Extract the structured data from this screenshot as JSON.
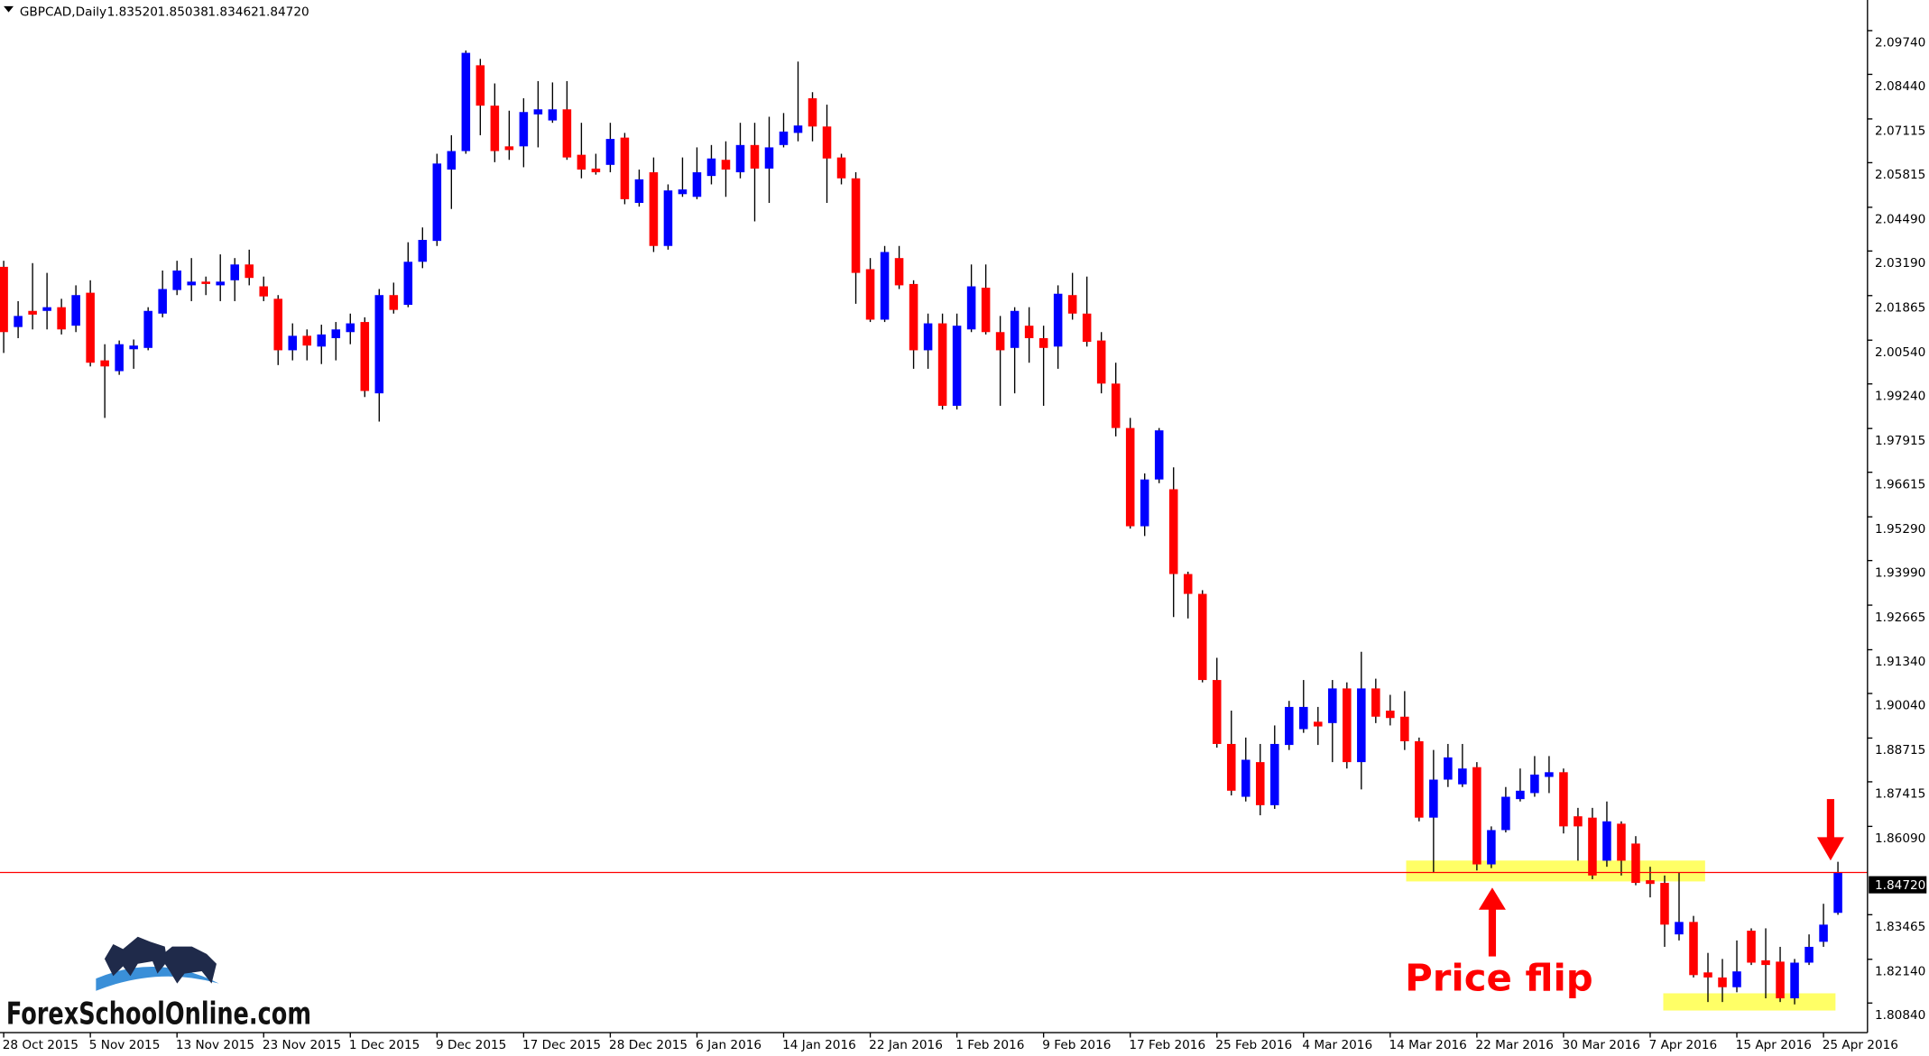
{
  "chart_data": {
    "type": "candlestick",
    "title": "GBPCAD,Daily",
    "header_labels": [
      "1.83520",
      "1.85038",
      "1.83462",
      "1.84720"
    ],
    "annotation": "Price flip",
    "logo": "ForexSchoolOnline.com",
    "up_color": "#0000ff",
    "down_color": "#ff0000",
    "wick_color": "#000000",
    "categories": [
      "28 Oct 2015",
      null,
      null,
      null,
      null,
      null,
      "5 Nov 2015",
      null,
      null,
      null,
      null,
      null,
      "13 Nov 2015",
      null,
      null,
      null,
      null,
      null,
      "23 Nov 2015",
      null,
      null,
      null,
      null,
      null,
      "1 Dec 2015",
      null,
      null,
      null,
      null,
      null,
      "9 Dec 2015",
      null,
      null,
      null,
      null,
      null,
      "17 Dec 2015",
      null,
      null,
      null,
      null,
      null,
      "28 Dec 2015",
      null,
      null,
      null,
      null,
      null,
      "6 Jan 2016",
      null,
      null,
      null,
      null,
      null,
      "14 Jan 2016",
      null,
      null,
      null,
      null,
      null,
      "22 Jan 2016",
      null,
      null,
      null,
      null,
      null,
      "1 Feb 2016",
      null,
      null,
      null,
      null,
      null,
      "9 Feb 2016",
      null,
      null,
      null,
      null,
      null,
      "17 Feb 2016",
      null,
      null,
      null,
      null,
      null,
      "25 Feb 2016",
      null,
      null,
      null,
      null,
      null,
      "4 Mar 2016",
      null,
      null,
      null,
      null,
      null,
      "14 Mar 2016",
      null,
      null,
      null,
      null,
      null,
      "22 Mar 2016",
      null,
      null,
      null,
      null,
      null,
      "30 Mar 2016",
      null,
      null,
      null,
      null,
      null,
      "7 Apr 2016",
      null,
      null,
      null,
      null,
      null,
      "15 Apr 2016",
      null,
      null,
      null,
      null,
      null,
      "25 Apr 2016",
      null
    ],
    "open": [
      2.0272,
      2.0093,
      2.0141,
      2.0141,
      2.0152,
      2.0097,
      2.0195,
      1.9994,
      1.9962,
      2.0027,
      2.0031,
      2.0133,
      2.0203,
      2.0217,
      2.0228,
      2.0217,
      2.0232,
      2.0279,
      2.0214,
      2.0177,
      2.0024,
      2.0067,
      2.0035,
      2.006,
      2.0078,
      2.0108,
      1.9896,
      2.0188,
      2.0159,
      2.0287,
      2.0349,
      2.0561,
      2.0616,
      2.0871,
      2.0751,
      2.063,
      2.063,
      2.0725,
      2.0707,
      2.074,
      2.0605,
      2.0564,
      2.0575,
      2.0656,
      2.0462,
      2.0553,
      2.0334,
      2.0488,
      2.048,
      2.0542,
      2.059,
      2.0553,
      2.0634,
      2.0564,
      2.0634,
      2.067,
      2.0773,
      2.0689,
      2.0597,
      2.0535,
      2.0265,
      2.0115,
      2.0298,
      2.0221,
      2.0024,
      2.0104,
      1.9859,
      2.0086,
      2.021,
      2.0078,
      2.0031,
      2.0097,
      2.006,
      2.0035,
      2.0188,
      2.0133,
      2.0053,
      1.9925,
      1.9793,
      1.9501,
      1.964,
      1.9611,
      1.9359,
      1.93,
      1.9044,
      1.8854,
      1.8697,
      1.88,
      1.8672,
      1.8851,
      1.8898,
      1.892,
      1.8916,
      1.9019,
      1.88,
      1.9019,
      1.8953,
      1.8935,
      1.8862,
      1.8635,
      1.8748,
      1.8734,
      1.8785,
      1.8496,
      1.8598,
      1.869,
      1.8708,
      1.8756,
      1.877,
      1.8639,
      1.8635,
      1.8507,
      1.8617,
      1.8558,
      1.8449,
      1.8441,
      1.8288,
      1.8325,
      1.8175,
      1.816,
      1.8131,
      1.8299,
      1.8211,
      1.8207,
      1.8098,
      1.8204,
      1.8266,
      1.8352
    ],
    "high": [
      2.029,
      2.017,
      2.0283,
      2.0254,
      2.0177,
      2.0217,
      2.0232,
      2.0042,
      2.0053,
      2.0056,
      2.0152,
      2.0261,
      2.029,
      2.0298,
      2.0243,
      2.0309,
      2.0298,
      2.0323,
      2.0243,
      2.0188,
      2.0104,
      2.0086,
      2.01,
      2.0108,
      2.0133,
      2.0122,
      2.0206,
      2.0225,
      2.0345,
      2.0389,
      2.0608,
      2.0663,
      2.0915,
      2.089,
      2.0817,
      2.0736,
      2.0773,
      2.0824,
      2.082,
      2.0824,
      2.07,
      2.0608,
      2.07,
      2.067,
      2.0561,
      2.0597,
      2.0517,
      2.0597,
      2.0627,
      2.0634,
      2.0645,
      2.07,
      2.07,
      2.0718,
      2.0729,
      2.0882,
      2.0791,
      2.0754,
      2.0608,
      2.0553,
      2.0298,
      2.0334,
      2.0334,
      2.0232,
      2.0133,
      2.0133,
      2.0133,
      2.0279,
      2.0279,
      2.0126,
      2.0152,
      2.0152,
      2.0097,
      2.0217,
      2.0254,
      2.0243,
      2.0078,
      1.9987,
      1.9823,
      1.9658,
      1.9793,
      1.9676,
      1.9366,
      1.9311,
      1.911,
      1.8953,
      1.8873,
      1.8854,
      1.8909,
      1.8982,
      1.9044,
      1.8964,
      1.9044,
      1.9037,
      1.9128,
      1.9048,
      1.9,
      1.9011,
      1.8873,
      1.8836,
      1.8854,
      1.8854,
      1.88,
      1.8609,
      1.8726,
      1.8781,
      1.8818,
      1.8818,
      1.8781,
      1.8664,
      1.8664,
      1.8683,
      1.8624,
      1.858,
      1.8489,
      1.8463,
      1.8471,
      1.8343,
      1.8233,
      1.8215,
      1.827,
      1.8306,
      1.8306,
      1.8251,
      1.8215,
      1.8288,
      1.8379,
      1.85038
    ],
    "low": [
      2.0016,
      2.006,
      2.0086,
      2.0086,
      2.0071,
      2.0078,
      1.9976,
      1.9823,
      1.9951,
      1.9969,
      2.0024,
      2.0122,
      2.0188,
      2.017,
      2.0188,
      2.017,
      2.017,
      2.0217,
      2.017,
      1.998,
      1.9994,
      1.9994,
      1.9983,
      1.9994,
      2.0042,
      1.9885,
      1.9812,
      2.0133,
      2.0152,
      2.0268,
      2.0334,
      2.0444,
      2.0608,
      2.0663,
      2.0583,
      2.059,
      2.0568,
      2.0627,
      2.07,
      2.059,
      2.0535,
      2.0546,
      2.0553,
      2.0458,
      2.0451,
      2.0316,
      2.0323,
      2.048,
      2.0473,
      2.0517,
      2.048,
      2.0535,
      2.0407,
      2.0462,
      2.0627,
      2.0645,
      2.0645,
      2.0462,
      2.0517,
      2.0162,
      2.0108,
      2.0108,
      2.0206,
      1.9969,
      1.9969,
      1.9848,
      1.9848,
      2.0078,
      2.0071,
      1.9859,
      1.9896,
      1.9987,
      1.9859,
      1.9969,
      2.0115,
      2.0035,
      1.9896,
      1.9768,
      1.9494,
      1.9472,
      1.9629,
      1.9231,
      1.9227,
      1.9037,
      1.8843,
      1.8701,
      1.8683,
      1.8642,
      1.8661,
      1.8836,
      1.8887,
      1.8851,
      1.88,
      1.8781,
      1.8719,
      1.8916,
      1.8909,
      1.8836,
      1.8624,
      1.8471,
      1.8726,
      1.8726,
      1.8478,
      1.8485,
      1.8591,
      1.8683,
      1.8697,
      1.8708,
      1.8588,
      1.8507,
      1.8452,
      1.8489,
      1.8463,
      1.8434,
      1.8398,
      1.8251,
      1.827,
      1.816,
      1.8087,
      1.8087,
      1.8116,
      1.8197,
      1.8098,
      1.8087,
      1.808,
      1.8197,
      1.8251,
      1.83462
    ],
    "close": [
      2.0078,
      2.0126,
      2.013,
      2.0152,
      2.0086,
      2.0188,
      1.9987,
      1.9976,
      2.0042,
      2.0038,
      2.0141,
      2.0206,
      2.0261,
      2.0228,
      2.0221,
      2.0228,
      2.0279,
      2.0239,
      2.0184,
      2.0024,
      2.0067,
      2.0038,
      2.0071,
      2.0086,
      2.0104,
      1.9903,
      2.0188,
      2.0144,
      2.0287,
      2.0352,
      2.0579,
      2.0616,
      2.0908,
      2.0751,
      2.0616,
      2.0619,
      2.0732,
      2.074,
      2.074,
      2.0597,
      2.0561,
      2.0553,
      2.0652,
      2.0473,
      2.0532,
      2.0334,
      2.0499,
      2.0502,
      2.0553,
      2.0594,
      2.0561,
      2.0634,
      2.0564,
      2.0627,
      2.0674,
      2.0692,
      2.0689,
      2.0594,
      2.0535,
      2.0254,
      2.0115,
      2.0316,
      2.0217,
      2.0024,
      2.0104,
      1.9859,
      2.0097,
      2.0214,
      2.0078,
      2.0024,
      2.0141,
      2.006,
      2.0031,
      2.0192,
      2.0133,
      2.0049,
      1.9925,
      1.9793,
      1.9501,
      1.964,
      1.9786,
      1.9359,
      1.93,
      1.9044,
      1.8854,
      1.8715,
      1.8807,
      1.8672,
      1.8854,
      1.8964,
      1.8964,
      1.8906,
      1.9019,
      1.88,
      1.9019,
      1.8935,
      1.8931,
      1.8862,
      1.8635,
      1.8748,
      1.8814,
      1.8781,
      1.8496,
      1.8598,
      1.8697,
      1.8715,
      1.8763,
      1.877,
      1.8609,
      1.8609,
      1.8463,
      1.8624,
      1.8507,
      1.8441,
      1.8438,
      1.8317,
      1.8325,
      1.8167,
      1.816,
      1.8131,
      1.8178,
      1.8204,
      1.8197,
      1.8098,
      1.8204,
      1.8251,
      1.8317,
      1.8472
    ],
    "ylim": [
      1.7996,
      2.1065
    ],
    "yticks": [
      {
        "value": 2.0974,
        "label": "2.09740"
      },
      {
        "value": 2.0844,
        "label": "2.08440"
      },
      2.07115,
      2.05815,
      {
        "value": 2.0449,
        "label": "2.04490"
      },
      {
        "value": 2.0319,
        "label": "2.03190"
      },
      2.01865,
      {
        "value": 2.0054,
        "label": "2.00540"
      },
      {
        "value": 1.9924,
        "label": "1.99240"
      },
      1.97915,
      1.96615,
      {
        "value": 1.9529,
        "label": "1.95290"
      },
      {
        "value": 1.9399,
        "label": "1.93990"
      },
      1.92665,
      {
        "value": 1.9134,
        "label": "1.91340"
      },
      {
        "value": 1.9004,
        "label": "1.90040"
      },
      1.88715,
      1.87415,
      {
        "value": 1.8609,
        "label": "1.86090"
      },
      1.83465,
      {
        "value": 1.8214,
        "label": "1.82140"
      },
      {
        "value": 1.8084,
        "label": "1.80840"
      }
    ],
    "price_line": {
      "value": 1.8472,
      "label": "1.84720",
      "color": "#ff0000"
    }
  }
}
